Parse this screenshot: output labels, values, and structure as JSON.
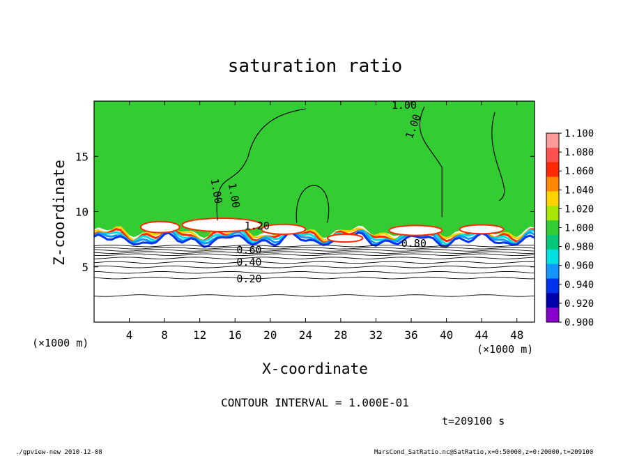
{
  "chart_data": {
    "type": "heatmap",
    "title": "saturation ratio",
    "xlabel": "X-coordinate",
    "ylabel": "Z-coordinate",
    "x_unit": "(×1000 m)",
    "x_unit_right": "(×1000 m)",
    "xlim": [
      0,
      50
    ],
    "ylim": [
      0,
      20
    ],
    "x_ticks": [
      4,
      8,
      12,
      16,
      20,
      24,
      28,
      32,
      36,
      40,
      44,
      48
    ],
    "y_ticks": [
      5,
      10,
      15
    ],
    "contour_interval_text": "CONTOUR INTERVAL = 1.000E-01",
    "time_text": "t=209100 s",
    "colorbar": {
      "levels": [
        "1.100",
        "1.080",
        "1.060",
        "1.040",
        "1.020",
        "1.000",
        "0.980",
        "0.960",
        "0.940",
        "0.920",
        "0.900"
      ],
      "colors": [
        "#ff9a9a",
        "#ff5050",
        "#ff2a00",
        "#ff8800",
        "#ffd200",
        "#a6e600",
        "#33cc33",
        "#00c878",
        "#00e0e0",
        "#1496ff",
        "#0033ee",
        "#0000aa",
        "#8800cc"
      ]
    },
    "saturated_region_value": 1.0,
    "contour_labels": [
      {
        "text": "1.00",
        "x": 35.2,
        "z": 19.3
      },
      {
        "text": "1.00",
        "x": 36.6,
        "z": 17.6,
        "rotate": -70
      },
      {
        "text": "1.00",
        "x": 13.5,
        "z": 11.8,
        "rotate": 80
      },
      {
        "text": "1.00",
        "x": 15.5,
        "z": 11.4,
        "rotate": 80
      },
      {
        "text": "1.20",
        "x": 18.5,
        "z": 8.4
      },
      {
        "text": "0.60",
        "x": 17.6,
        "z": 6.2
      },
      {
        "text": "0.40",
        "x": 17.6,
        "z": 5.1
      },
      {
        "text": "0.20",
        "x": 17.6,
        "z": 3.6
      },
      {
        "text": "0.80",
        "x": 36.3,
        "z": 6.8
      }
    ],
    "background_isolines_z": [
      6.9,
      6.7,
      6.5,
      6.3,
      6.1,
      5.8,
      5.4,
      5.0,
      4.5,
      4.0,
      2.4
    ]
  },
  "footer": {
    "left": "./gpview-new  2010-12-08",
    "right": "MarsCond_SatRatio.nc@SatRatio,x=0:50000,z=0:20000,t=209100"
  }
}
